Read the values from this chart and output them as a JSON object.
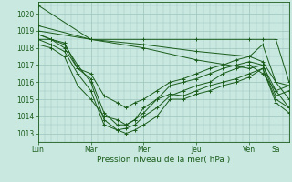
{
  "title": "",
  "xlabel": "Pression niveau de la mer( hPa )",
  "ylabel": "",
  "bg_color": "#c8e8e0",
  "plot_bg_color": "#c8e8e0",
  "grid_color": "#9cc4bc",
  "line_color": "#1a5c1a",
  "ylim": [
    1012.5,
    1020.7
  ],
  "yticks": [
    1013,
    1014,
    1015,
    1016,
    1017,
    1018,
    1019,
    1020
  ],
  "day_labels": [
    "Lun",
    "Mar",
    "Mer",
    "Jeu",
    "Ven",
    "Sa"
  ],
  "day_positions": [
    0,
    48,
    96,
    144,
    192,
    216
  ],
  "total_hours": 228,
  "series": [
    {
      "x": [
        0,
        48,
        96,
        144,
        192,
        204,
        216,
        228
      ],
      "y": [
        1020.5,
        1018.5,
        1018.5,
        1018.5,
        1018.5,
        1018.5,
        1018.5,
        1016.0
      ]
    },
    {
      "x": [
        0,
        48,
        96,
        144,
        192,
        204,
        216,
        228
      ],
      "y": [
        1019.3,
        1018.5,
        1018.2,
        1017.8,
        1017.5,
        1018.2,
        1016.0,
        1015.0
      ]
    },
    {
      "x": [
        0,
        48,
        96,
        144,
        192,
        204,
        216,
        228
      ],
      "y": [
        1019.0,
        1018.5,
        1018.0,
        1017.3,
        1016.8,
        1017.0,
        1015.5,
        1014.5
      ]
    },
    {
      "x": [
        0,
        12,
        24,
        36,
        48,
        60,
        72,
        80,
        88,
        96,
        108,
        120,
        132,
        144,
        156,
        168,
        180,
        192,
        204,
        216,
        228
      ],
      "y": [
        1018.5,
        1018.5,
        1018.3,
        1016.8,
        1016.2,
        1014.2,
        1013.5,
        1013.5,
        1013.8,
        1014.5,
        1015.0,
        1015.3,
        1015.2,
        1015.5,
        1015.8,
        1016.0,
        1016.2,
        1016.5,
        1016.8,
        1015.0,
        1014.5
      ]
    },
    {
      "x": [
        0,
        12,
        24,
        36,
        48,
        60,
        72,
        80,
        88,
        96,
        108,
        120,
        132,
        144,
        156,
        168,
        180,
        192,
        204,
        216,
        228
      ],
      "y": [
        1018.8,
        1018.5,
        1018.2,
        1017.0,
        1016.0,
        1013.8,
        1013.2,
        1013.0,
        1013.2,
        1013.5,
        1014.0,
        1015.0,
        1015.0,
        1015.3,
        1015.5,
        1015.8,
        1016.0,
        1016.3,
        1016.8,
        1014.8,
        1014.2
      ]
    },
    {
      "x": [
        0,
        12,
        24,
        36,
        48,
        60,
        72,
        80,
        88,
        96,
        108,
        120,
        132,
        144,
        156,
        168,
        180,
        192,
        204,
        216,
        228
      ],
      "y": [
        1018.5,
        1018.2,
        1017.8,
        1016.5,
        1015.5,
        1013.5,
        1013.2,
        1013.3,
        1013.5,
        1014.0,
        1014.5,
        1015.2,
        1015.5,
        1015.8,
        1016.0,
        1016.5,
        1016.8,
        1017.0,
        1016.5,
        1015.5,
        1015.8
      ]
    },
    {
      "x": [
        0,
        12,
        24,
        36,
        48,
        60,
        72,
        80,
        88,
        96,
        108,
        120,
        132,
        144,
        156,
        168,
        180,
        192,
        204,
        216,
        228
      ],
      "y": [
        1018.2,
        1018.0,
        1017.5,
        1015.8,
        1015.0,
        1014.0,
        1013.8,
        1013.5,
        1013.8,
        1014.2,
        1015.0,
        1015.8,
        1016.0,
        1016.2,
        1016.5,
        1016.8,
        1017.0,
        1017.2,
        1017.0,
        1015.2,
        1015.5
      ]
    },
    {
      "x": [
        0,
        12,
        24,
        36,
        48,
        60,
        72,
        80,
        88,
        96,
        108,
        120,
        132,
        144,
        156,
        168,
        180,
        192,
        204,
        216,
        228
      ],
      "y": [
        1018.8,
        1018.5,
        1018.0,
        1016.8,
        1016.5,
        1015.2,
        1014.8,
        1014.5,
        1014.8,
        1015.0,
        1015.5,
        1016.0,
        1016.2,
        1016.5,
        1016.8,
        1017.0,
        1017.3,
        1017.5,
        1017.2,
        1016.0,
        1015.8
      ]
    }
  ]
}
